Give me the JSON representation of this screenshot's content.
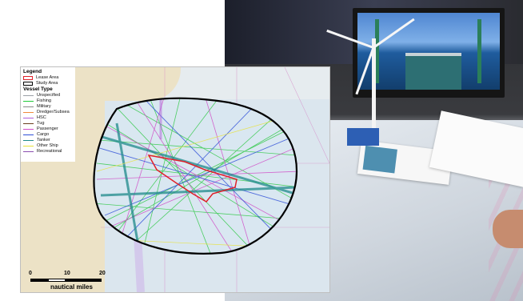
{
  "legend": {
    "title": "Legend",
    "areas": [
      {
        "label": "Lease Area",
        "color": "#e0202a"
      },
      {
        "label": "Study Area",
        "color": "#000000"
      }
    ],
    "vessel_type_heading": "Vessel Type",
    "vessel_types": [
      {
        "label": "Unspecified",
        "color": "#9aa0a6"
      },
      {
        "label": "Fishing",
        "color": "#22c93a"
      },
      {
        "label": "Military",
        "color": "#8a8a8a"
      },
      {
        "label": "Dredger/Subsea",
        "color": "#f08a3c"
      },
      {
        "label": "HSC",
        "color": "#b05fd8"
      },
      {
        "label": "Tug",
        "color": "#6b3f1f"
      },
      {
        "label": "Passenger",
        "color": "#d14ac8"
      },
      {
        "label": "Cargo",
        "color": "#2f4fd8"
      },
      {
        "label": "Tanker",
        "color": "#1e8a8a"
      },
      {
        "label": "Other Ship",
        "color": "#e8e23a"
      },
      {
        "label": "Recreational",
        "color": "#8a4fb0"
      }
    ]
  },
  "scale_bar": {
    "ticks": [
      "0",
      "10",
      "20"
    ],
    "unit": "nautical miles"
  }
}
